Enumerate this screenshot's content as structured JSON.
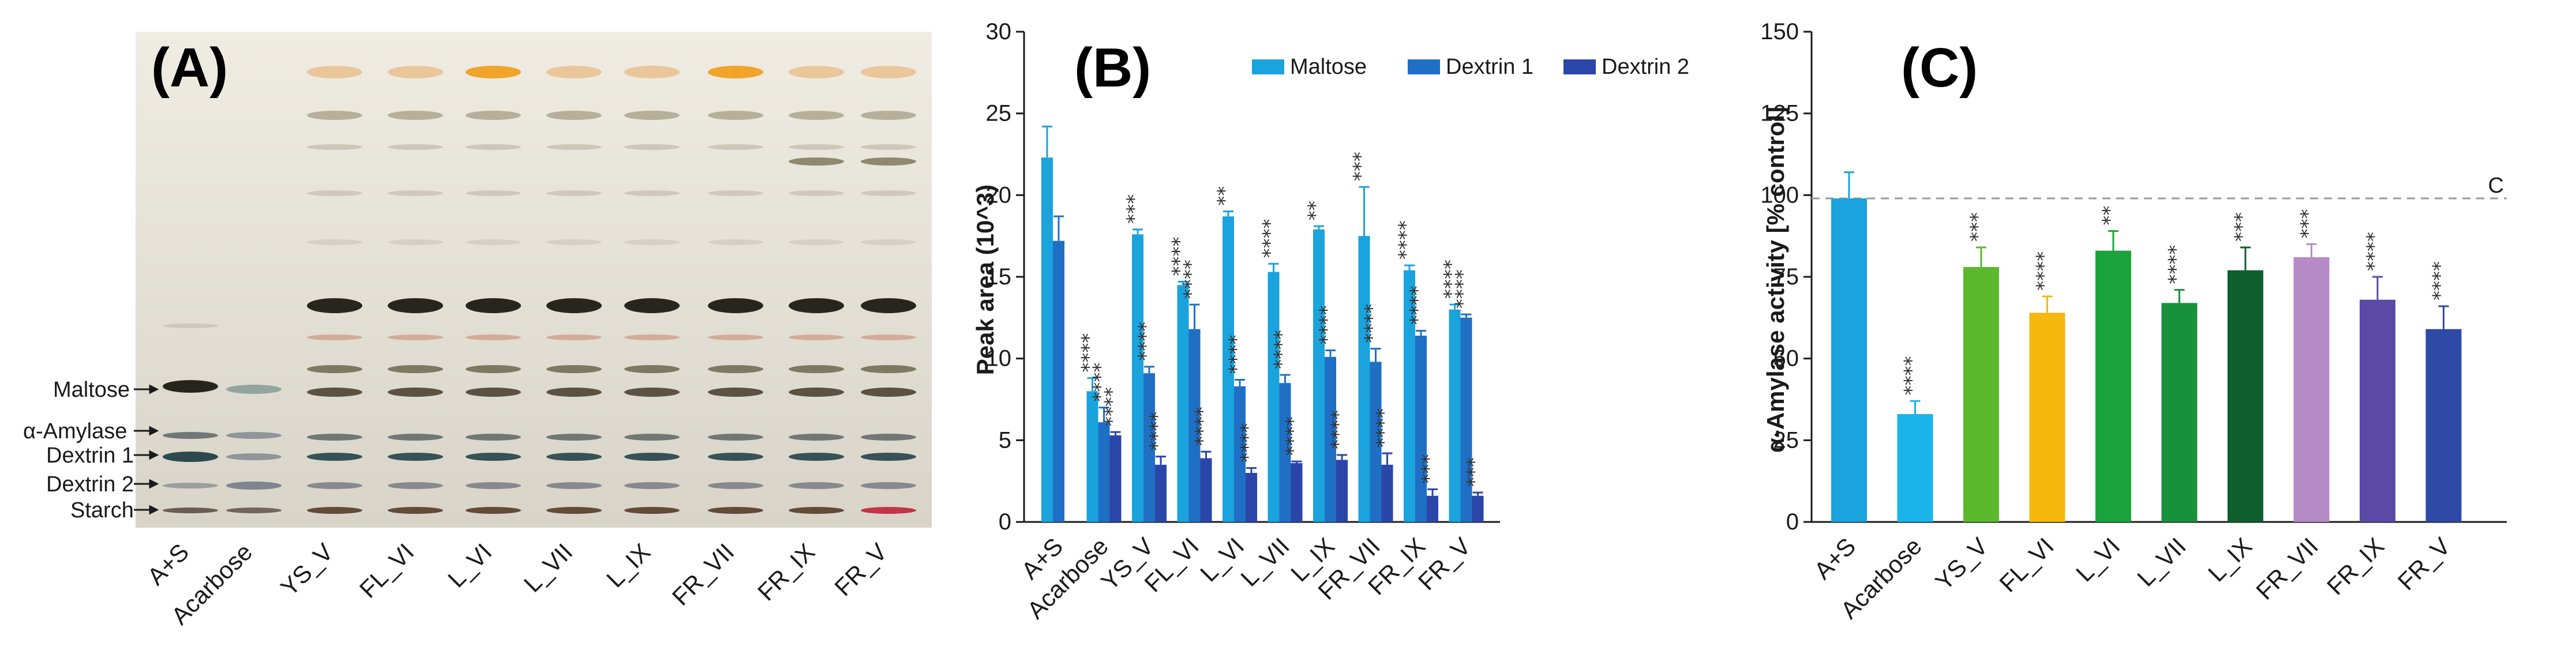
{
  "panel_a": {
    "letter": "(A)",
    "lanes": [
      "A+S",
      "Acarbose",
      "YS_V",
      "FL_VI",
      "L_VI",
      "L_VII",
      "L_IX",
      "FR_VII",
      "FR_IX",
      "FR_V"
    ],
    "band_labels": [
      "Maltose",
      "α-Amylase",
      "Dextrin 1",
      "Dextrin 2",
      "Starch"
    ],
    "colors": {
      "plate_top": "#efece3",
      "plate_bottom": "#d8d4c8",
      "band_dark": "#1c1a14",
      "band_orange": "#f0a020"
    }
  },
  "chart_data": [
    {
      "type": "bar",
      "panel": "(B)",
      "title": "",
      "xlabel": "",
      "ylabel": "Peak area (10^3)",
      "ylim": [
        0,
        30
      ],
      "yticks": [
        0,
        5,
        10,
        15,
        20,
        25,
        30
      ],
      "categories": [
        "A+S",
        "Acarbose",
        "YS_V",
        "FL_VI",
        "L_VI",
        "L_VII",
        "L_IX",
        "FR_VII",
        "FR_IX",
        "FR_V"
      ],
      "legend_position": "top-right",
      "series": [
        {
          "name": "Maltose",
          "color": "#1aa3dc",
          "values": [
            22.3,
            8.0,
            17.6,
            14.5,
            18.7,
            15.3,
            17.9,
            17.5,
            15.4,
            13.0
          ],
          "errors": [
            1.9,
            0.8,
            0.3,
            0.2,
            0.3,
            0.5,
            0.2,
            3.0,
            0.3,
            0.3
          ],
          "sig": [
            "",
            "****",
            "***",
            "****",
            "**",
            "****",
            "**",
            "***",
            "****",
            "****"
          ]
        },
        {
          "name": "Dextrin 1",
          "color": "#1f6fc4",
          "values": [
            17.2,
            6.1,
            9.1,
            11.8,
            8.3,
            8.5,
            10.1,
            9.8,
            11.4,
            12.5
          ],
          "errors": [
            1.5,
            0.9,
            0.4,
            1.5,
            0.4,
            0.5,
            0.4,
            0.8,
            0.3,
            0.2
          ],
          "sig": [
            "",
            "****",
            "****",
            "****",
            "****",
            "****",
            "****",
            "****",
            "****",
            "****"
          ]
        },
        {
          "name": "Dextrin 2",
          "color": "#2a46a8",
          "values": [
            0,
            5.3,
            3.5,
            3.9,
            3.0,
            3.6,
            3.8,
            3.5,
            1.6,
            1.6
          ],
          "errors": [
            0,
            0.2,
            0.5,
            0.4,
            0.3,
            0.1,
            0.3,
            0.7,
            0.4,
            0.2
          ],
          "sig": [
            "",
            "****",
            "****",
            "****",
            "****",
            "****",
            "****",
            "****",
            "***",
            "***"
          ]
        }
      ]
    },
    {
      "type": "bar",
      "panel": "(C)",
      "title": "",
      "xlabel": "",
      "ylabel": "α-Amylase activity [% control]",
      "ylim": [
        0,
        150
      ],
      "yticks": [
        0,
        25,
        50,
        75,
        100,
        125,
        150
      ],
      "reference_line": {
        "value": 99,
        "label": "C"
      },
      "categories": [
        "A+S",
        "Acarbose",
        "YS_V",
        "FL_VI",
        "L_VI",
        "L_VII",
        "L_IX",
        "FR_VII",
        "FR_IX",
        "FR_V"
      ],
      "values": [
        99,
        33,
        78,
        64,
        83,
        67,
        77,
        81,
        68,
        59
      ],
      "errors": [
        8,
        4,
        6,
        5,
        6,
        4,
        7,
        4,
        7,
        7
      ],
      "sig": [
        "",
        "****",
        "***",
        "****",
        "**",
        "****",
        "***",
        "***",
        "****",
        "****"
      ],
      "colors": [
        "#1aa3dc",
        "#1ab4ea",
        "#5cb82d",
        "#f6b70e",
        "#1aa33c",
        "#17913c",
        "#0e5e2e",
        "#b68ac4",
        "#5a4aa6",
        "#2e4aa6"
      ]
    }
  ]
}
